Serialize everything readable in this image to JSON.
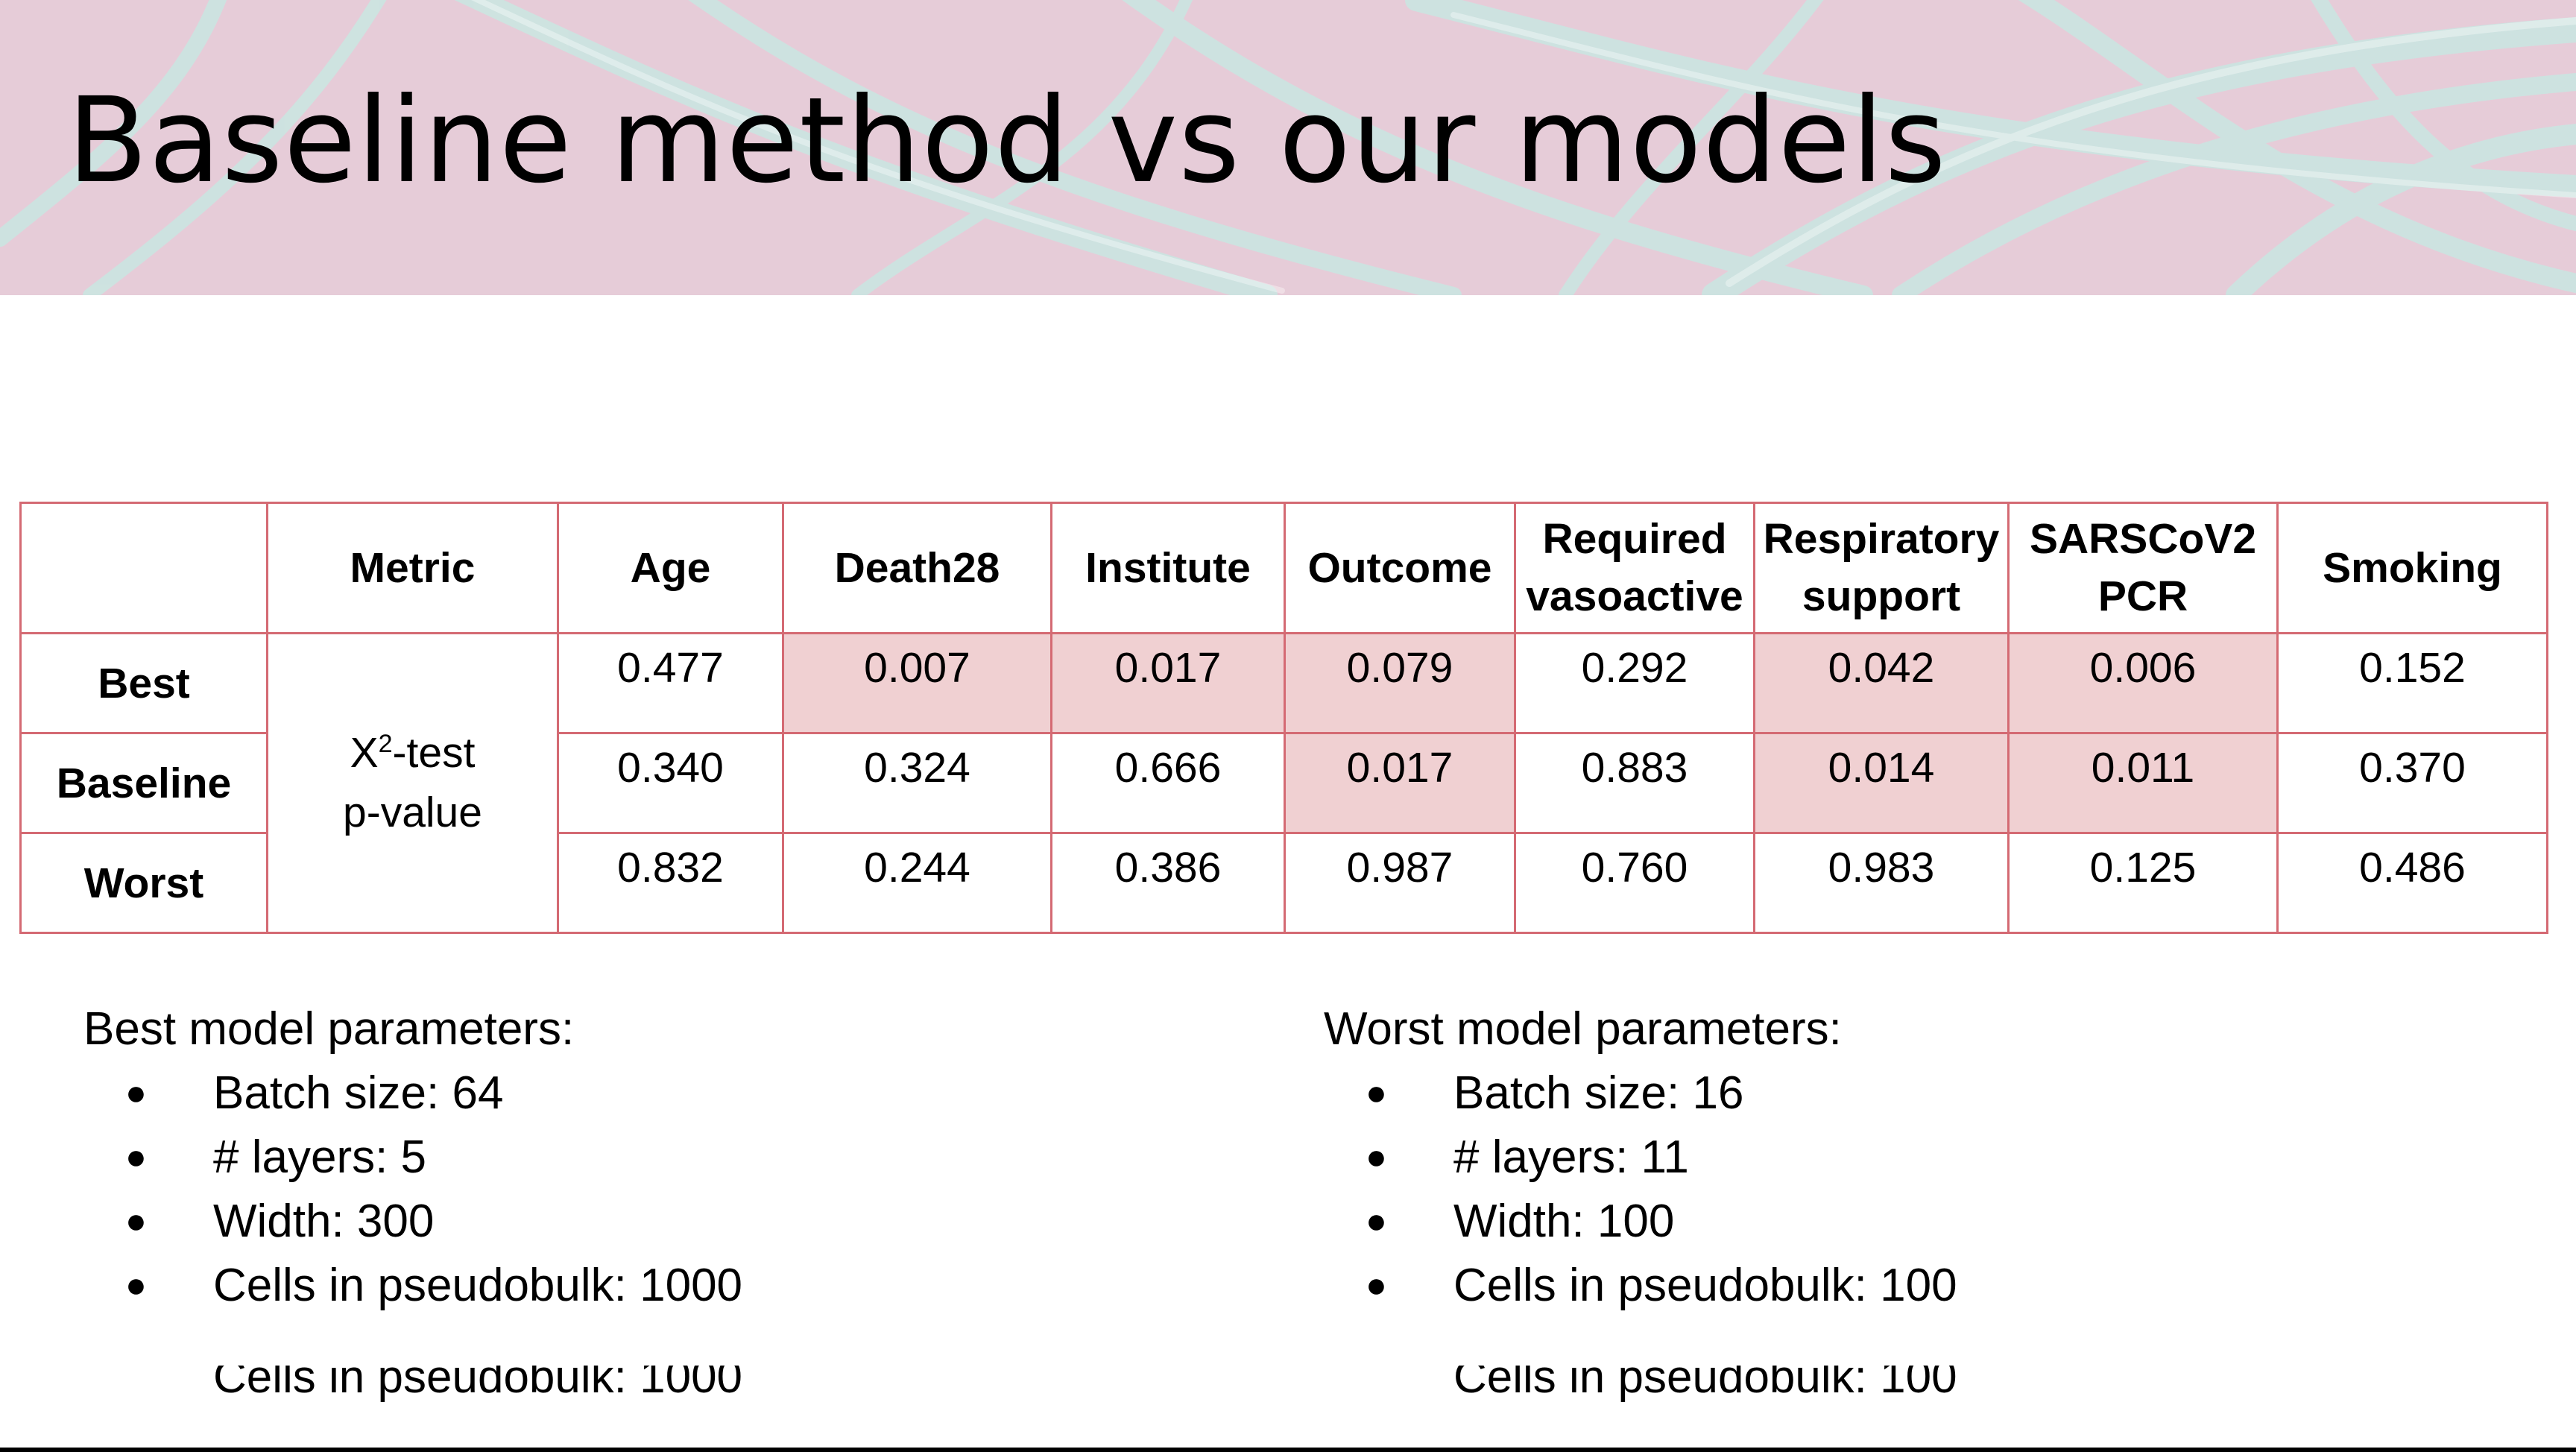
{
  "slide": {
    "title": "Baseline method vs our models"
  },
  "colors": {
    "table_border": "#d46a73",
    "highlight": "#f0d0d2",
    "banner_pink": "#e6ccd8",
    "banner_strands": "#c9e6e2"
  },
  "table": {
    "headers": {
      "metric": "Metric",
      "age": "Age",
      "death28": "Death28",
      "institute": "Institute",
      "outcome": "Outcome",
      "required_line1": "Required",
      "required_line2": "vasoactive",
      "respiratory_line1": "Respiratory",
      "respiratory_line2": "support",
      "sars_line1": "SARSCoV2",
      "sars_line2": "PCR",
      "smoking": "Smoking"
    },
    "metric": {
      "chi_prefix": "X",
      "chi_sup": "2",
      "chi_suffix": "-test",
      "line2": "p-value"
    },
    "rows": [
      {
        "label": "Best",
        "values": [
          "0.477",
          "0.007",
          "0.017",
          "0.079",
          "0.292",
          "0.042",
          "0.006",
          "0.152"
        ]
      },
      {
        "label": "Baseline",
        "values": [
          "0.340",
          "0.324",
          "0.666",
          "0.017",
          "0.883",
          "0.014",
          "0.011",
          "0.370"
        ]
      },
      {
        "label": "Worst",
        "values": [
          "0.832",
          "0.244",
          "0.386",
          "0.987",
          "0.760",
          "0.983",
          "0.125",
          "0.486"
        ]
      }
    ]
  },
  "best_params": {
    "heading": "Best model parameters:",
    "items": [
      "Batch size: 64",
      "# layers: 5",
      "Width: 300",
      "Cells in pseudobulk: 1000"
    ],
    "bullet": "●"
  },
  "worst_params": {
    "heading": "Worst model parameters:",
    "items": [
      "Batch size: 16",
      "# layers: 11",
      "Width: 100",
      "Cells in pseudobulk: 100"
    ],
    "bullet": "●"
  }
}
